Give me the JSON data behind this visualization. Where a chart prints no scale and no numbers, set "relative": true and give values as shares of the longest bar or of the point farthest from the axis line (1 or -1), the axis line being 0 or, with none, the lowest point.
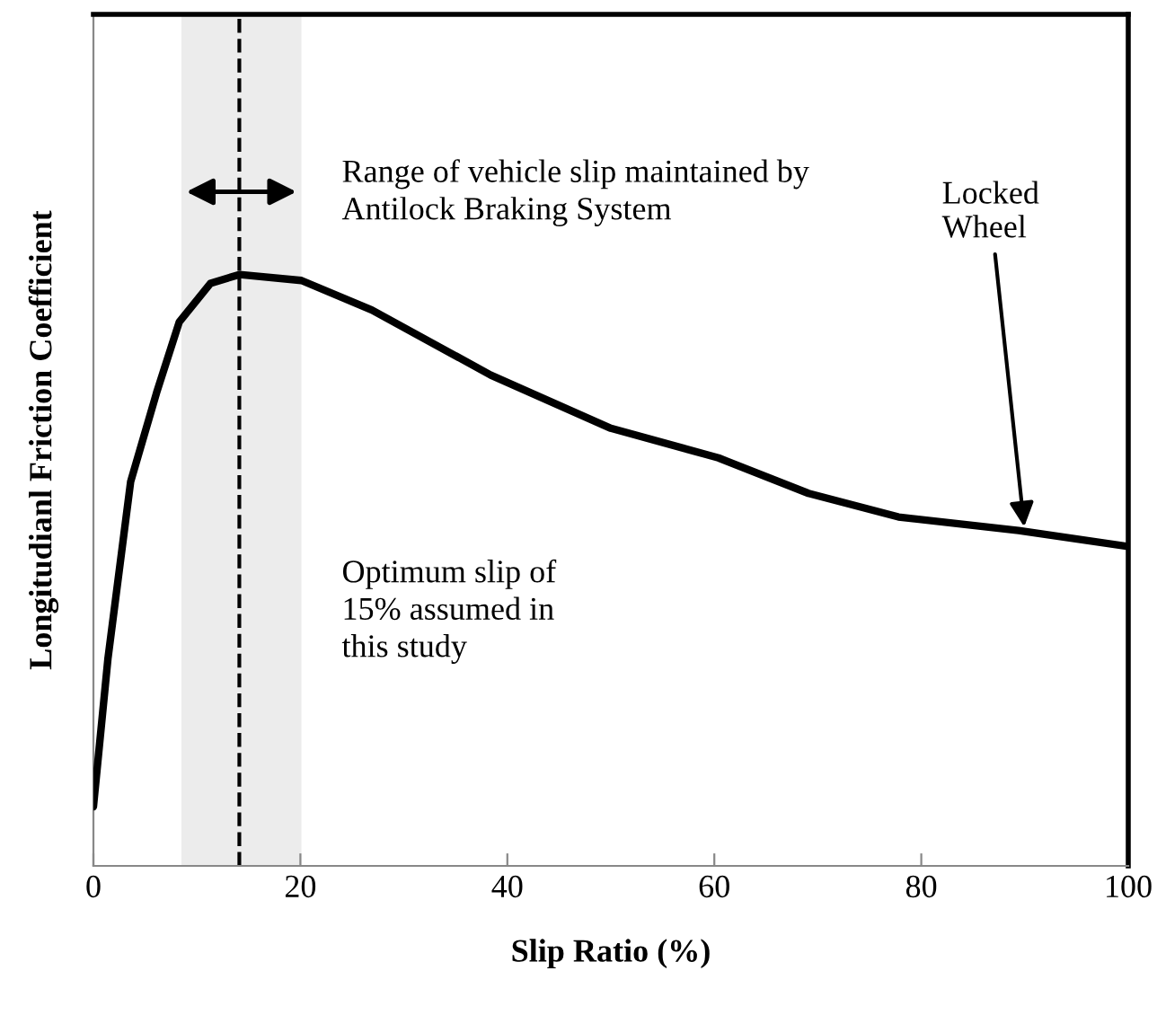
{
  "chart_data": {
    "type": "line",
    "relative": true,
    "xlabel": "Slip Ratio (%)",
    "ylabel": "Longitudianl Friction Coefficient",
    "x": [
      0,
      1.4,
      3.6,
      6.1,
      8.3,
      11.3,
      14.1,
      20.1,
      26.9,
      38.4,
      50,
      60.4,
      69.1,
      77.8,
      89.4,
      100
    ],
    "series": [
      {
        "color": "#000000",
        "values": [
          0.1,
          0.35,
          0.65,
          0.8,
          0.92,
          0.985,
          1.0,
          0.99,
          0.94,
          0.83,
          0.74,
          0.69,
          0.63,
          0.59,
          0.567,
          0.54
        ]
      }
    ],
    "xlim": [
      0,
      100
    ],
    "xticks": [
      0,
      20,
      40,
      60,
      80,
      100
    ],
    "tick_labels": "x",
    "grid": false,
    "legend": false,
    "marker": "none",
    "line_style": "solid",
    "bands": [
      {
        "axis": "x",
        "from": 8.5,
        "to": 20.1,
        "label": null,
        "color": "#ececec"
      }
    ],
    "ref_lines": [
      {
        "axis": "x",
        "value": 14.1,
        "label": null,
        "color": "#000000",
        "line_style": "dashed"
      }
    ],
    "annotations": [
      "Range of vehicle slip maintained by\nAntilock Braking System",
      "Optimum slip of\n15% assumed in\nthis study",
      {
        "text": "Locked\nWheel",
        "x": 90,
        "y": 0.565
      }
    ]
  }
}
